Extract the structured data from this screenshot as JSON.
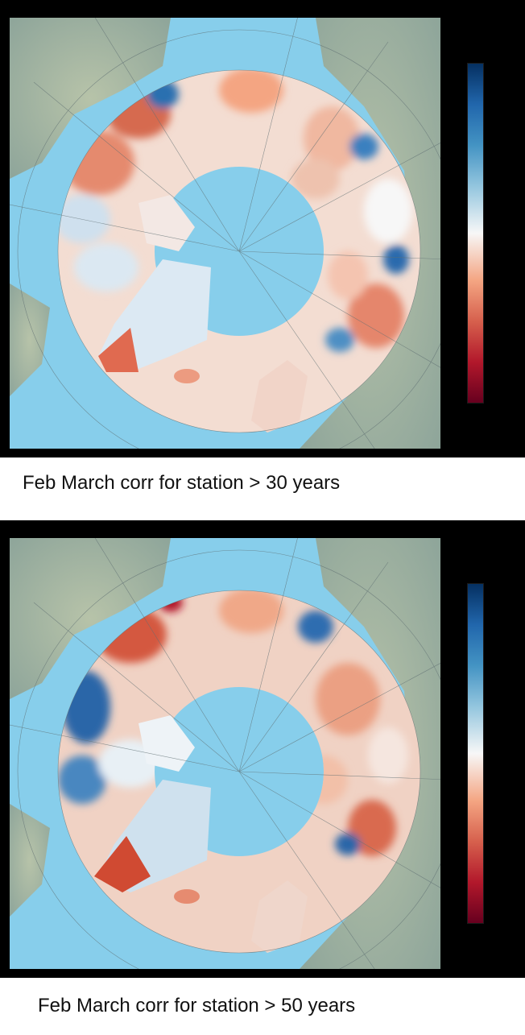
{
  "panels": [
    {
      "caption": "Feb March corr for station > 30 years"
    },
    {
      "caption": "Feb March corr for station > 50 years"
    }
  ],
  "colors": {
    "ocean": "#87ceeb",
    "land": "#9fb09a",
    "frame": "#000000",
    "colormap": [
      "#053061",
      "#2166ac",
      "#92c5de",
      "#f7f7f7",
      "#f4a582",
      "#d6604d",
      "#67001f"
    ]
  }
}
